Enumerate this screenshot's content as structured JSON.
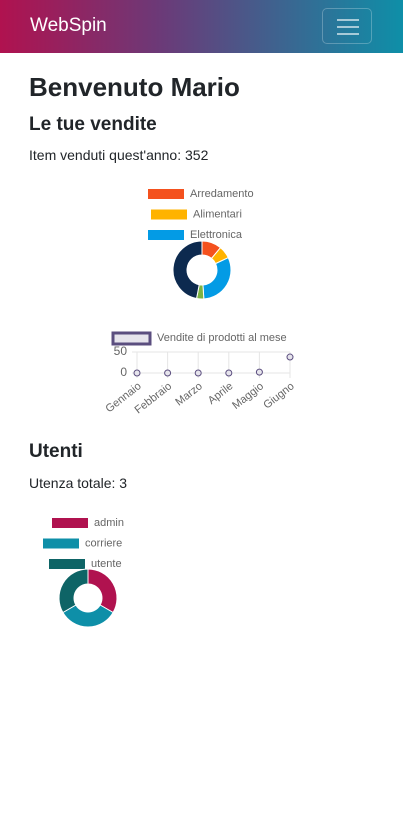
{
  "navbar": {
    "brand": "WebSpin"
  },
  "header": {
    "title": "Benvenuto Mario"
  },
  "sales": {
    "title": "Le tue vendite",
    "summary": "Item venduti quest'anno: 352"
  },
  "users": {
    "title": "Utenti",
    "summary": "Utenza totale: 3"
  },
  "chart_data": [
    {
      "type": "doughnut",
      "categories": [
        "Arredamento",
        "Alimentari",
        "Elettronica",
        null,
        null
      ],
      "values": [
        11,
        7,
        31,
        4,
        47
      ],
      "colors": [
        "#f4511e",
        "#ffb300",
        "#039be5",
        "#7cb342",
        "#0d2a4f"
      ]
    },
    {
      "type": "line",
      "categories": [
        "Gennaio",
        "Febbraio",
        "Marzo",
        "Aprile",
        "Maggio",
        "Giugno"
      ],
      "series": [
        {
          "name": "Vendite di prodotti al mese",
          "color": "#5b4e7f",
          "values": [
            0,
            0,
            0,
            0,
            2,
            38
          ]
        }
      ],
      "ylim": [
        0,
        50
      ],
      "yticks": [
        0,
        50
      ],
      "grid": true
    },
    {
      "type": "doughnut",
      "categories": [
        "admin",
        "corriere",
        "utente"
      ],
      "values": [
        1,
        1,
        1
      ],
      "colors": [
        "#b0124f",
        "#0e8fa8",
        "#0e6466"
      ]
    }
  ]
}
